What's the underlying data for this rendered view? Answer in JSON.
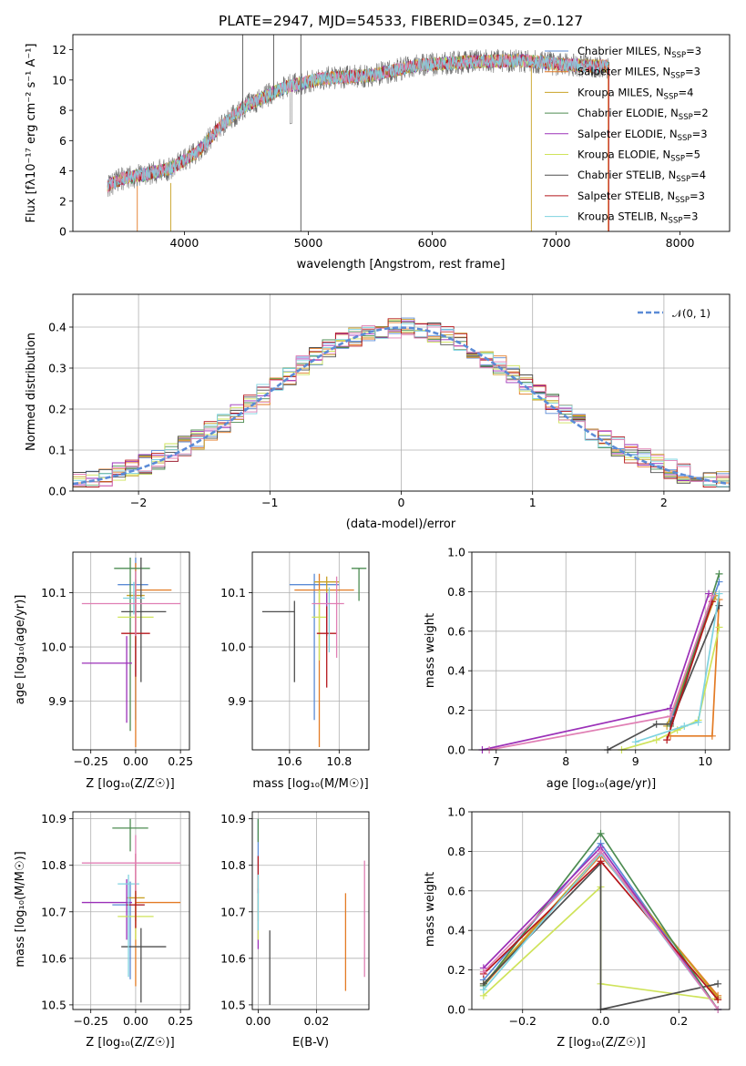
{
  "colors": [
    "#5b8bd6",
    "#e37b25",
    "#c9a227",
    "#4d8c52",
    "#9b30b8",
    "#cfe35a",
    "#4f4f4f",
    "#b5161b",
    "#7fd3e0",
    "#e07fb4"
  ],
  "chart_data": [
    {
      "id": "spectrum",
      "type": "line",
      "title": "PLATE=2947, MJD=54533, FIBERID=0345, z=0.127",
      "xlabel": "wavelength [Angstrom, rest frame]",
      "ylabel": "Flux [fλ10⁻¹⁷ erg cm⁻² s⁻¹ A⁻¹]",
      "xlim": [
        3100,
        8400
      ],
      "ylim": [
        0,
        13
      ],
      "xticks": [
        "4000",
        "5000",
        "6000",
        "7000",
        "8000"
      ],
      "yticks": [
        "0",
        "2",
        "4",
        "6",
        "8",
        "10",
        "12"
      ],
      "data_shape": {
        "x": [
          3380,
          3500,
          3700,
          3900,
          4100,
          4300,
          4500,
          4800,
          5100,
          5500,
          5900,
          6300,
          6700,
          7100,
          7400,
          7430
        ],
        "y": [
          3.0,
          3.5,
          3.8,
          4.2,
          5.2,
          7.0,
          8.3,
          9.5,
          10.1,
          10.3,
          11.0,
          11.2,
          11.3,
          11.0,
          10.9,
          10.7
        ]
      },
      "legend": [
        {
          "label": "Chabrier MILES, N",
          "sub": "SSP",
          "suffix": "=3"
        },
        {
          "label": "Salpeter MILES, N",
          "sub": "SSP",
          "suffix": "=3"
        },
        {
          "label": "Kroupa MILES, N",
          "sub": "SSP",
          "suffix": "=4"
        },
        {
          "label": "Chabrier ELODIE, N",
          "sub": "SSP",
          "suffix": "=2"
        },
        {
          "label": "Salpeter ELODIE, N",
          "sub": "SSP",
          "suffix": "=3"
        },
        {
          "label": "Kroupa ELODIE, N",
          "sub": "SSP",
          "suffix": "=5"
        },
        {
          "label": "Chabrier STELIB, N",
          "sub": "SSP",
          "suffix": "=4"
        },
        {
          "label": "Salpeter STELIB, N",
          "sub": "SSP",
          "suffix": "=3"
        },
        {
          "label": "Kroupa STELIB, N",
          "sub": "SSP",
          "suffix": "=3"
        }
      ]
    },
    {
      "id": "residuals",
      "type": "area",
      "xlabel": "(data-model)/error",
      "ylabel": "Normed distribution",
      "xlim": [
        -2.5,
        2.5
      ],
      "ylim": [
        0,
        0.48
      ],
      "xticks": [
        "−2",
        "−1",
        "0",
        "1",
        "2"
      ],
      "yticks": [
        "0.0",
        "0.1",
        "0.2",
        "0.3",
        "0.4"
      ],
      "reference_label": "𝒩(0, 1)",
      "bin_width": 0.1,
      "grid": true
    },
    {
      "id": "age-vs-Z",
      "type": "scatter",
      "xlabel": "Z [log₁₀(Z/Z☉)]",
      "ylabel": "age  [log₁₀(age/yr)]",
      "xlim": [
        -0.35,
        0.3
      ],
      "ylim": [
        9.81,
        10.175
      ],
      "xticks": [
        "−0.25",
        "0.00",
        "0.25"
      ],
      "yticks": [
        "9.9",
        "10.0",
        "10.1"
      ],
      "points": [
        {
          "x": 0.0,
          "y": 10.115,
          "xerr": [
            0.1,
            0.07
          ],
          "yerr": [
            0.25,
            0.05
          ]
        },
        {
          "x": 0.0,
          "y": 10.105,
          "xerr": [
            0.0,
            0.2
          ],
          "yerr": [
            0.29,
            0.05
          ]
        },
        {
          "x": 0.0,
          "y": 10.095,
          "xerr": [
            0.05,
            0.05
          ],
          "yerr": [
            0.04,
            0.03
          ]
        },
        {
          "x": -0.03,
          "y": 10.145,
          "xerr": [
            0.09,
            0.11
          ],
          "yerr": [
            0.3,
            0.02
          ]
        },
        {
          "x": -0.05,
          "y": 9.97,
          "xerr": [
            0.25,
            0.03
          ],
          "yerr": [
            0.11,
            0.05
          ]
        },
        {
          "x": 0.0,
          "y": 10.055,
          "xerr": [
            0.1,
            0.1
          ],
          "yerr": [
            0.05,
            0.05
          ]
        },
        {
          "x": 0.03,
          "y": 10.065,
          "xerr": [
            0.11,
            0.14
          ],
          "yerr": [
            0.13,
            0.1
          ]
        },
        {
          "x": 0.0,
          "y": 10.025,
          "xerr": [
            0.08,
            0.08
          ],
          "yerr": [
            0.08,
            0.08
          ]
        },
        {
          "x": -0.01,
          "y": 10.09,
          "xerr": [
            0.06,
            0.06
          ],
          "yerr": [
            0.03,
            0.03
          ]
        },
        {
          "x": 0.0,
          "y": 10.08,
          "xerr": [
            0.3,
            0.25
          ],
          "yerr": [
            0.06,
            0.06
          ]
        }
      ]
    },
    {
      "id": "age-vs-mass",
      "type": "scatter",
      "xlabel": "mass [log₁₀(M/M☉)]",
      "xlim": [
        10.45,
        10.92
      ],
      "ylim": [
        9.81,
        10.175
      ],
      "xticks": [
        "10.6",
        "10.8"
      ],
      "yticks": [
        "9.9",
        "10.0",
        "10.1"
      ],
      "points": [
        {
          "x": 10.7,
          "y": 10.115,
          "xerr": [
            0.1,
            0.1
          ],
          "yerr": [
            0.25,
            0.02
          ]
        },
        {
          "x": 10.72,
          "y": 10.105,
          "xerr": [
            0.1,
            0.14
          ],
          "yerr": [
            0.29,
            0.03
          ]
        },
        {
          "x": 10.75,
          "y": 10.12,
          "xerr": [
            0.05,
            0.05
          ],
          "yerr": [
            0.04,
            0.01
          ]
        },
        {
          "x": 10.88,
          "y": 10.145,
          "xerr": [
            0.03,
            0.03
          ],
          "yerr": [
            0.06,
            0.0
          ]
        },
        {
          "x": 10.75,
          "y": 10.1,
          "xerr": [
            0.0,
            0.0
          ],
          "yerr": [
            0.08,
            0.0
          ]
        },
        {
          "x": 10.72,
          "y": 10.055,
          "xerr": [
            0.03,
            0.03
          ],
          "yerr": [
            0.08,
            0.05
          ]
        },
        {
          "x": 10.62,
          "y": 10.065,
          "xerr": [
            0.13,
            0.0
          ],
          "yerr": [
            0.13,
            0.02
          ]
        },
        {
          "x": 10.75,
          "y": 10.025,
          "xerr": [
            0.04,
            0.04
          ],
          "yerr": [
            0.1,
            0.05
          ]
        },
        {
          "x": 10.76,
          "y": 10.09,
          "xerr": [
            0.0,
            0.0
          ],
          "yerr": [
            0.1,
            0.02
          ]
        },
        {
          "x": 10.79,
          "y": 10.08,
          "xerr": [
            0.1,
            0.03
          ],
          "yerr": [
            0.1,
            0.05
          ]
        }
      ]
    },
    {
      "id": "weight-vs-age",
      "type": "line",
      "xlabel": "age  [log₁₀(age/yr)]",
      "ylabel": "mass weight",
      "xlim": [
        6.65,
        10.35
      ],
      "ylim": [
        0,
        1.0
      ],
      "xticks": [
        "7",
        "8",
        "9",
        "10"
      ],
      "yticks": [
        "0.0",
        "0.2",
        "0.4",
        "0.6",
        "0.8",
        "1.0"
      ],
      "series": [
        {
          "x": [
            9.5,
            10.2
          ],
          "y": [
            0.14,
            0.85
          ]
        },
        {
          "x": [
            9.5,
            10.1,
            10.2
          ],
          "y": [
            0.07,
            0.07,
            0.76
          ]
        },
        {
          "x": [
            9.45,
            10.15
          ],
          "y": [
            0.12,
            0.78
          ]
        },
        {
          "x": [
            9.5,
            10.2
          ],
          "y": [
            0.12,
            0.89
          ]
        },
        {
          "x": [
            6.8,
            9.5,
            10.05
          ],
          "y": [
            0.0,
            0.21,
            0.79
          ]
        },
        {
          "x": [
            8.8,
            9.3,
            9.6,
            9.9,
            10.2
          ],
          "y": [
            0.0,
            0.05,
            0.1,
            0.15,
            0.62
          ]
        },
        {
          "x": [
            8.6,
            9.3,
            9.5,
            10.2
          ],
          "y": [
            0.0,
            0.13,
            0.13,
            0.73
          ]
        },
        {
          "x": [
            9.45,
            10.1
          ],
          "y": [
            0.05,
            0.75
          ]
        },
        {
          "x": [
            9.0,
            9.7,
            9.9,
            10.2
          ],
          "y": [
            0.04,
            0.12,
            0.14,
            0.79
          ]
        },
        {
          "x": [
            6.9,
            9.5,
            10.1
          ],
          "y": [
            0.0,
            0.17,
            0.78
          ]
        }
      ]
    },
    {
      "id": "mass-vs-Z",
      "type": "scatter",
      "xlabel": "Z [log₁₀(Z/Z☉)]",
      "ylabel": "mass [log₁₀(M/M☉)]",
      "xlim": [
        -0.35,
        0.3
      ],
      "ylim": [
        10.49,
        10.915
      ],
      "xticks": [
        "−0.25",
        "0.00",
        "0.25"
      ],
      "yticks": [
        "10.5",
        "10.6",
        "10.7",
        "10.8",
        "10.9"
      ],
      "points": [
        {
          "x": -0.03,
          "y": 10.715,
          "xerr": [
            0.1,
            0.08
          ],
          "yerr": [
            0.16,
            0.05
          ]
        },
        {
          "x": 0.0,
          "y": 10.72,
          "xerr": [
            0.0,
            0.25
          ],
          "yerr": [
            0.18,
            0.0
          ]
        },
        {
          "x": 0.0,
          "y": 10.73,
          "xerr": [
            0.05,
            0.05
          ],
          "yerr": [
            0.05,
            0.03
          ]
        },
        {
          "x": -0.03,
          "y": 10.88,
          "xerr": [
            0.1,
            0.1
          ],
          "yerr": [
            0.05,
            0.02
          ]
        },
        {
          "x": -0.05,
          "y": 10.72,
          "xerr": [
            0.25,
            0.03
          ],
          "yerr": [
            0.08,
            0.05
          ]
        },
        {
          "x": 0.0,
          "y": 10.69,
          "xerr": [
            0.1,
            0.1
          ],
          "yerr": [
            0.05,
            0.05
          ]
        },
        {
          "x": 0.03,
          "y": 10.625,
          "xerr": [
            0.11,
            0.14
          ],
          "yerr": [
            0.12,
            0.04
          ]
        },
        {
          "x": 0.0,
          "y": 10.715,
          "xerr": [
            0.05,
            0.05
          ],
          "yerr": [
            0.05,
            0.11
          ]
        },
        {
          "x": -0.04,
          "y": 10.76,
          "xerr": [
            0.06,
            0.06
          ],
          "yerr": [
            0.2,
            0.02
          ]
        },
        {
          "x": 0.0,
          "y": 10.805,
          "xerr": [
            0.3,
            0.25
          ],
          "yerr": [
            0.06,
            0.06
          ]
        }
      ]
    },
    {
      "id": "mass-vs-EBV",
      "type": "scatter",
      "xlabel": "E(B-V)",
      "xlim": [
        -0.002,
        0.038
      ],
      "ylim": [
        10.49,
        10.915
      ],
      "xticks": [
        "0.00",
        "0.02"
      ],
      "yticks": [
        "10.5",
        "10.6",
        "10.7",
        "10.8",
        "10.9"
      ],
      "points": [
        {
          "x": 0.0,
          "y": 10.84,
          "xerr": [
            0,
            0
          ],
          "yerr": [
            0.06,
            0.06
          ]
        },
        {
          "x": 0.03,
          "y": 10.64,
          "xerr": [
            0,
            0
          ],
          "yerr": [
            0.11,
            0.1
          ]
        },
        {
          "x": 0.0,
          "y": 10.73,
          "xerr": [
            0,
            0
          ],
          "yerr": [
            0.05,
            0.05
          ]
        },
        {
          "x": 0.0,
          "y": 10.87,
          "xerr": [
            0,
            0
          ],
          "yerr": [
            0.02,
            0.03
          ]
        },
        {
          "x": 0.0,
          "y": 10.7,
          "xerr": [
            0,
            0
          ],
          "yerr": [
            0.08,
            0.05
          ]
        },
        {
          "x": 0.0,
          "y": 10.69,
          "xerr": [
            0,
            0
          ],
          "yerr": [
            0.05,
            0.05
          ]
        },
        {
          "x": 0.004,
          "y": 10.58,
          "xerr": [
            0,
            0
          ],
          "yerr": [
            0.08,
            0.08
          ]
        },
        {
          "x": 0.0,
          "y": 10.78,
          "xerr": [
            0,
            0
          ],
          "yerr": [
            0.04,
            0.04
          ]
        },
        {
          "x": 0.0,
          "y": 10.74,
          "xerr": [
            0,
            0
          ],
          "yerr": [
            0.08,
            0.04
          ]
        },
        {
          "x": 0.0365,
          "y": 10.69,
          "xerr": [
            0,
            0
          ],
          "yerr": [
            0.13,
            0.12
          ]
        }
      ]
    },
    {
      "id": "weight-vs-Z",
      "type": "line",
      "xlabel": "Z [log₁₀(Z/Z☉)]",
      "ylabel": "mass weight",
      "xlim": [
        -0.33,
        0.33
      ],
      "ylim": [
        0,
        1.0
      ],
      "xticks": [
        "−0.2",
        "0.0",
        "0.2"
      ],
      "yticks": [
        "0.0",
        "0.2",
        "0.4",
        "0.6",
        "0.8",
        "1.0"
      ],
      "series": [
        {
          "x": [
            -0.3,
            0.0,
            0.3
          ],
          "y": [
            0.15,
            0.84,
            0.0
          ]
        },
        {
          "x": [
            -0.3,
            0.0,
            0.3
          ],
          "y": [
            0.12,
            0.78,
            0.07
          ]
        },
        {
          "x": [
            -0.3,
            0.0,
            0.3
          ],
          "y": [
            0.13,
            0.79,
            0.06
          ]
        },
        {
          "x": [
            -0.3,
            0.0,
            0.3
          ],
          "y": [
            0.12,
            0.89,
            0.0
          ]
        },
        {
          "x": [
            -0.3,
            0.0,
            0.3
          ],
          "y": [
            0.21,
            0.82,
            0.0
          ]
        },
        {
          "x": [
            -0.3,
            0.0,
            0.0,
            0.3
          ],
          "y": [
            0.07,
            0.62,
            0.13,
            0.05
          ]
        },
        {
          "x": [
            -0.3,
            0.0,
            0.0,
            0.3
          ],
          "y": [
            0.13,
            0.74,
            0.0,
            0.13
          ]
        },
        {
          "x": [
            -0.3,
            0.0,
            0.3
          ],
          "y": [
            0.18,
            0.75,
            0.05
          ]
        },
        {
          "x": [
            -0.3,
            0.0,
            0.3
          ],
          "y": [
            0.1,
            0.79,
            0.0
          ]
        },
        {
          "x": [
            -0.3,
            0.0,
            0.3
          ],
          "y": [
            0.19,
            0.8,
            0.0
          ]
        }
      ]
    }
  ]
}
